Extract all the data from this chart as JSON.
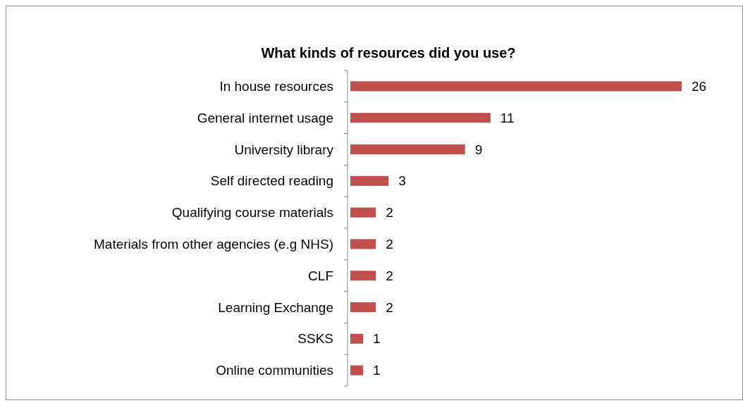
{
  "chart_data": {
    "type": "bar",
    "orientation": "horizontal",
    "title": "What kinds of resources did you use?",
    "categories": [
      "In house resources",
      "General internet usage",
      "University library",
      "Self directed reading",
      "Qualifying course materials",
      "Materials from other agencies (e.g NHS)",
      "CLF",
      "Learning Exchange",
      "SSKS",
      "Online communities"
    ],
    "values": [
      26,
      11,
      9,
      3,
      2,
      2,
      2,
      2,
      1,
      1
    ],
    "color": "#c0504d",
    "data_labels": true
  }
}
